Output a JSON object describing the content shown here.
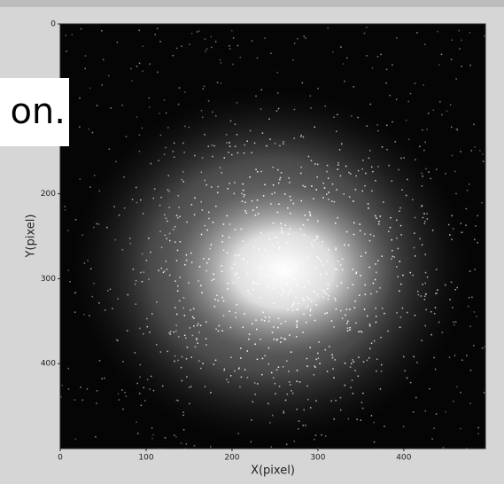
{
  "chart_data": {
    "type": "image",
    "xlabel": "X(pixel)",
    "ylabel": "Y(pixel)",
    "xlim": [
      0,
      495
    ],
    "ylim": [
      0,
      500
    ],
    "y_inverted": true,
    "xticks": [
      0,
      100,
      200,
      300,
      400
    ],
    "yticks": [
      0,
      200,
      300,
      400
    ],
    "overlay_text": "on."
  }
}
